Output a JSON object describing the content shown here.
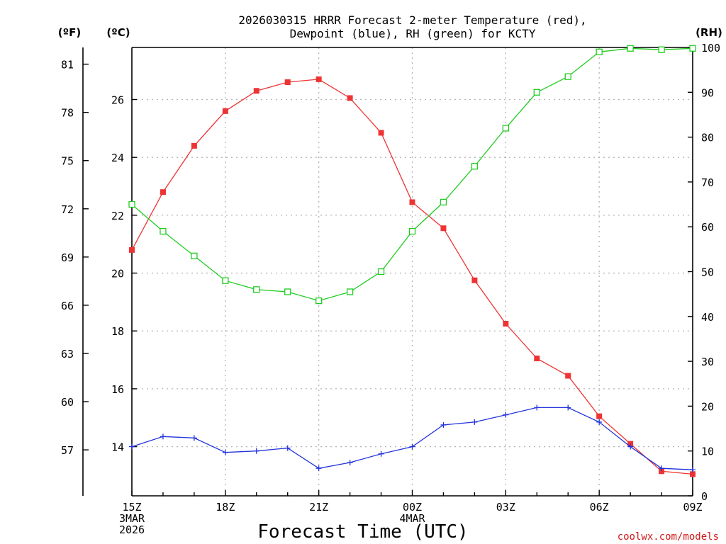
{
  "chart_data": {
    "type": "line",
    "title_line1": "2026030315 HRRR Forecast 2-meter Temperature (red),",
    "title_line2": "Dewpoint (blue), RH (green) for KCTY",
    "xlabel": "Forecast Time (UTC)",
    "credit": "coolwx.com/models",
    "unit_f": "(ºF)",
    "unit_c": "(ºC)",
    "unit_rh": "(RH)",
    "x": [
      0,
      1,
      2,
      3,
      4,
      5,
      6,
      7,
      8,
      9,
      10,
      11,
      12,
      13,
      14,
      15,
      16,
      17,
      18
    ],
    "x_range": [
      0,
      18
    ],
    "x_ticks": [
      {
        "x": 0,
        "lines": [
          "15Z",
          "3MAR",
          "2026"
        ]
      },
      {
        "x": 3,
        "lines": [
          "18Z"
        ]
      },
      {
        "x": 6,
        "lines": [
          "21Z"
        ]
      },
      {
        "x": 9,
        "lines": [
          "00Z",
          "4MAR"
        ]
      },
      {
        "x": 12,
        "lines": [
          "03Z"
        ]
      },
      {
        "x": 15,
        "lines": [
          "06Z"
        ]
      },
      {
        "x": 18,
        "lines": [
          "09Z"
        ]
      }
    ],
    "ylim_c": [
      12.3,
      27.8
    ],
    "ylim_rh": [
      0,
      100
    ],
    "yticks_c": [
      "14",
      "16",
      "18",
      "20",
      "22",
      "24",
      "26"
    ],
    "yticks_f": [
      "57",
      "60",
      "63",
      "66",
      "69",
      "72",
      "75",
      "78",
      "81"
    ],
    "yticks_rh": [
      "0",
      "10",
      "20",
      "30",
      "40",
      "50",
      "60",
      "70",
      "80",
      "90",
      "100"
    ],
    "series": [
      {
        "name": "2-meter Temperature",
        "axis": "c",
        "color": "#ee3333",
        "marker": "filled-square",
        "values": [
          20.8,
          22.8,
          24.4,
          25.6,
          26.3,
          26.6,
          26.7,
          26.05,
          24.85,
          22.45,
          21.55,
          19.75,
          18.25,
          17.05,
          16.45,
          15.05,
          14.1,
          13.15,
          13.05
        ]
      },
      {
        "name": "Dewpoint",
        "axis": "c",
        "color": "#2233dd",
        "marker": "plus",
        "values": [
          14.0,
          14.35,
          14.3,
          13.8,
          13.85,
          13.95,
          13.25,
          13.45,
          13.75,
          14.0,
          14.75,
          14.85,
          15.1,
          15.35,
          15.35,
          14.85,
          14.0,
          13.25,
          13.2
        ]
      },
      {
        "name": "RH",
        "axis": "rh",
        "color": "#22cc22",
        "marker": "open-square",
        "values": [
          65,
          59,
          53.5,
          48,
          46,
          45.5,
          43.5,
          45.5,
          50,
          59,
          65.5,
          73.5,
          82,
          90,
          93.5,
          99,
          99.8,
          99.5,
          99.8
        ]
      }
    ]
  }
}
